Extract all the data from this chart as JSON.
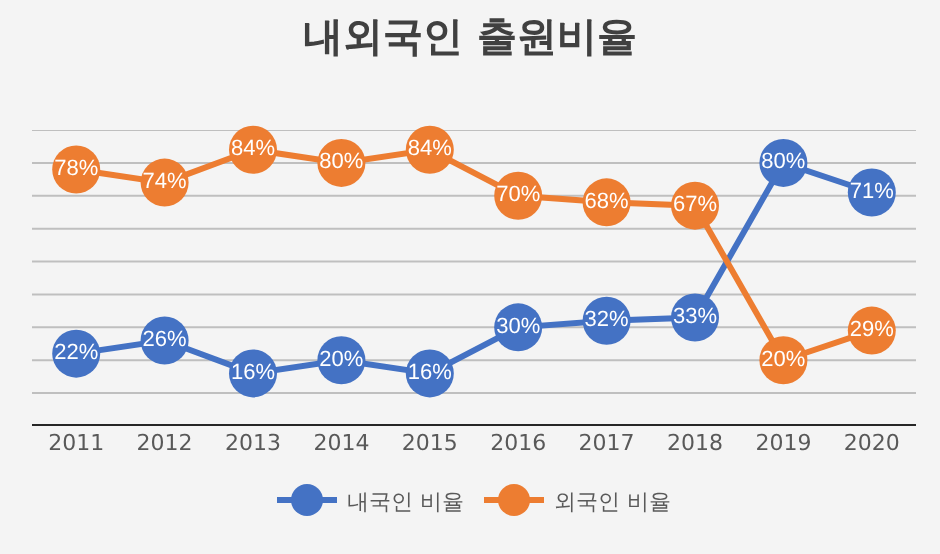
{
  "chart_data": {
    "type": "line",
    "title": "내외국인 출원비율",
    "categories": [
      "2011",
      "2012",
      "2013",
      "2014",
      "2015",
      "2016",
      "2017",
      "2018",
      "2019",
      "2020"
    ],
    "series": [
      {
        "name": "내국인 비율",
        "color": "#4472c4",
        "values": [
          22,
          26,
          16,
          20,
          16,
          30,
          32,
          33,
          80,
          71
        ],
        "value_labels": [
          "22%",
          "26%",
          "16%",
          "20%",
          "16%",
          "30%",
          "32%",
          "33%",
          "80%",
          "71%"
        ]
      },
      {
        "name": "외국인 비율",
        "color": "#ed7d31",
        "values": [
          78,
          74,
          84,
          80,
          84,
          70,
          68,
          67,
          20,
          29
        ],
        "value_labels": [
          "78%",
          "74%",
          "84%",
          "80%",
          "84%",
          "70%",
          "68%",
          "67%",
          "20%",
          "29%"
        ]
      }
    ],
    "ylim": [
      0,
      90
    ],
    "yticks": [
      {
        "value": 0,
        "label": null
      },
      {
        "value": 10,
        "label": null
      },
      {
        "value": 20,
        "label": null
      },
      {
        "value": 30,
        "label": null
      },
      {
        "value": 40,
        "label": null
      },
      {
        "value": 50,
        "label": null
      },
      {
        "value": 60,
        "label": null
      },
      {
        "value": 70,
        "label": null
      },
      {
        "value": 80,
        "label": null
      },
      {
        "value": 90,
        "label": null
      }
    ],
    "grid": "y",
    "tick_labels": "x",
    "legend": "bottom",
    "marker": "circle",
    "line_style": "solid"
  }
}
